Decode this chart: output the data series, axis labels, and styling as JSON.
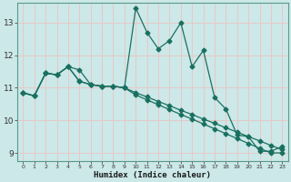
{
  "xlabel": "Humidex (Indice chaleur)",
  "background_color": "#cce8e8",
  "grid_color": "#e8c8c8",
  "line_color": "#1a7060",
  "xlim": [
    -0.5,
    23.5
  ],
  "ylim": [
    8.75,
    13.6
  ],
  "xticks": [
    0,
    1,
    2,
    3,
    4,
    5,
    6,
    7,
    8,
    9,
    10,
    11,
    12,
    13,
    14,
    15,
    16,
    17,
    18,
    19,
    20,
    21,
    22,
    23
  ],
  "yticks": [
    9,
    10,
    11,
    12,
    13
  ],
  "line1_x": [
    0,
    1,
    2,
    3,
    4,
    5,
    6,
    7,
    8,
    9,
    10,
    11,
    12,
    13,
    14,
    15,
    16,
    17,
    18,
    19,
    20,
    21,
    22,
    23
  ],
  "line1_y": [
    10.85,
    10.75,
    11.45,
    11.4,
    11.65,
    11.55,
    11.1,
    11.05,
    11.05,
    11.0,
    13.45,
    12.7,
    12.2,
    12.45,
    13.0,
    11.65,
    12.15,
    10.7,
    10.35,
    9.55,
    9.5,
    9.05,
    9.05,
    9.2
  ],
  "line2_x": [
    0,
    1,
    2,
    3,
    4,
    5,
    6,
    7,
    8,
    9,
    10,
    11,
    12,
    13,
    14,
    15,
    16,
    17,
    18,
    19,
    20,
    21,
    22,
    23
  ],
  "line2_y": [
    10.85,
    10.75,
    11.45,
    11.4,
    11.65,
    11.2,
    11.1,
    11.05,
    11.05,
    11.0,
    10.85,
    10.72,
    10.58,
    10.45,
    10.31,
    10.18,
    10.04,
    9.91,
    9.77,
    9.64,
    9.5,
    9.37,
    9.23,
    9.1
  ],
  "line3_x": [
    0,
    1,
    2,
    3,
    4,
    5,
    6,
    7,
    8,
    9,
    10,
    11,
    12,
    13,
    14,
    15,
    16,
    17,
    18,
    19,
    20,
    21,
    22,
    23
  ],
  "line3_y": [
    10.85,
    10.75,
    11.45,
    11.4,
    11.65,
    11.2,
    11.1,
    11.05,
    11.05,
    11.0,
    10.78,
    10.63,
    10.48,
    10.33,
    10.18,
    10.04,
    9.89,
    9.74,
    9.59,
    9.44,
    9.29,
    9.14,
    9.0,
    9.0
  ]
}
